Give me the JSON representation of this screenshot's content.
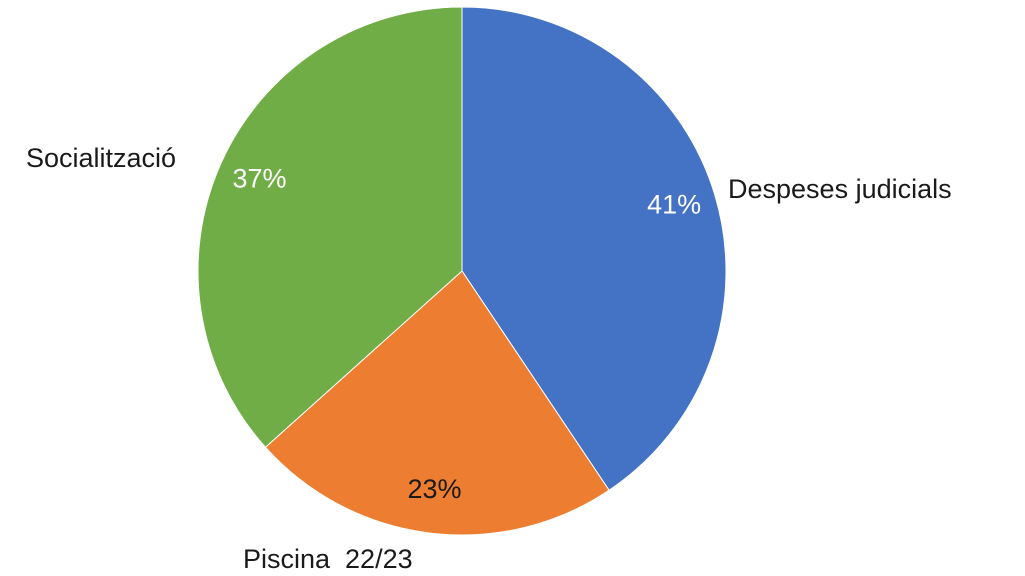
{
  "chart_data": {
    "type": "pie",
    "start_angle_deg": 0,
    "direction": "clockwise",
    "legend": "none",
    "slices": [
      {
        "label": "Despeses judicials",
        "value": 41,
        "percent_label": "41%",
        "color": "#4472c4",
        "percent_color": "#ffffff"
      },
      {
        "label": "Piscina  22/23",
        "value": 23,
        "percent_label": "23%",
        "color": "#ed7d31",
        "percent_color": "#1a1a1a"
      },
      {
        "label": "Socialització",
        "value": 37,
        "percent_label": "37%",
        "color": "#70ad47",
        "percent_color": "#ffffff"
      }
    ]
  }
}
